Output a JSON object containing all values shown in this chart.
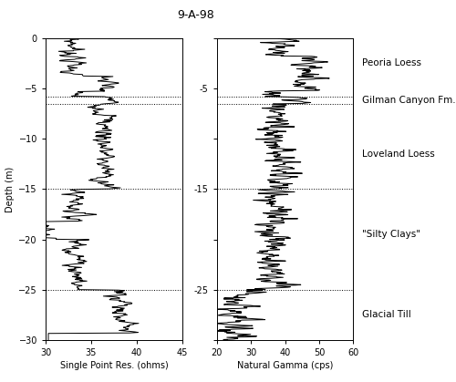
{
  "title": "9-A-98",
  "depth_min": -30,
  "depth_max": 0,
  "depth_ticks": [
    0,
    -5,
    -10,
    -15,
    -20,
    -25,
    -30
  ],
  "ylabel": "Depth (m)",
  "panel1_xlabel": "Single Point Res. (ohms)",
  "panel1_xlim": [
    30,
    45
  ],
  "panel1_xticks": [
    30,
    35,
    40,
    45
  ],
  "panel2_xlabel": "Natural Gamma (cps)",
  "panel2_xlim": [
    20,
    60
  ],
  "panel2_xticks": [
    20,
    30,
    40,
    50,
    60
  ],
  "hlines": [
    -5.8,
    -6.5,
    -15.0,
    -25.0
  ],
  "annotations": [
    {
      "text": "Peoria Loess",
      "depth": -2.5
    },
    {
      "text": "Gilman Canyon Fm.",
      "depth": -6.15
    },
    {
      "text": "Loveland Loess",
      "depth": -11.5
    },
    {
      "text": "\"Silty Clays\"",
      "depth": -19.5
    },
    {
      "text": "Glacial Till",
      "depth": -27.5
    }
  ],
  "panel2_tick_labels_shown": [
    -5,
    -15,
    -25
  ],
  "line_color": "#000000",
  "line_width": 0.7,
  "background_color": "#ffffff",
  "title_fontsize": 9,
  "label_fontsize": 7,
  "tick_fontsize": 7,
  "annot_fontsize": 7.5
}
